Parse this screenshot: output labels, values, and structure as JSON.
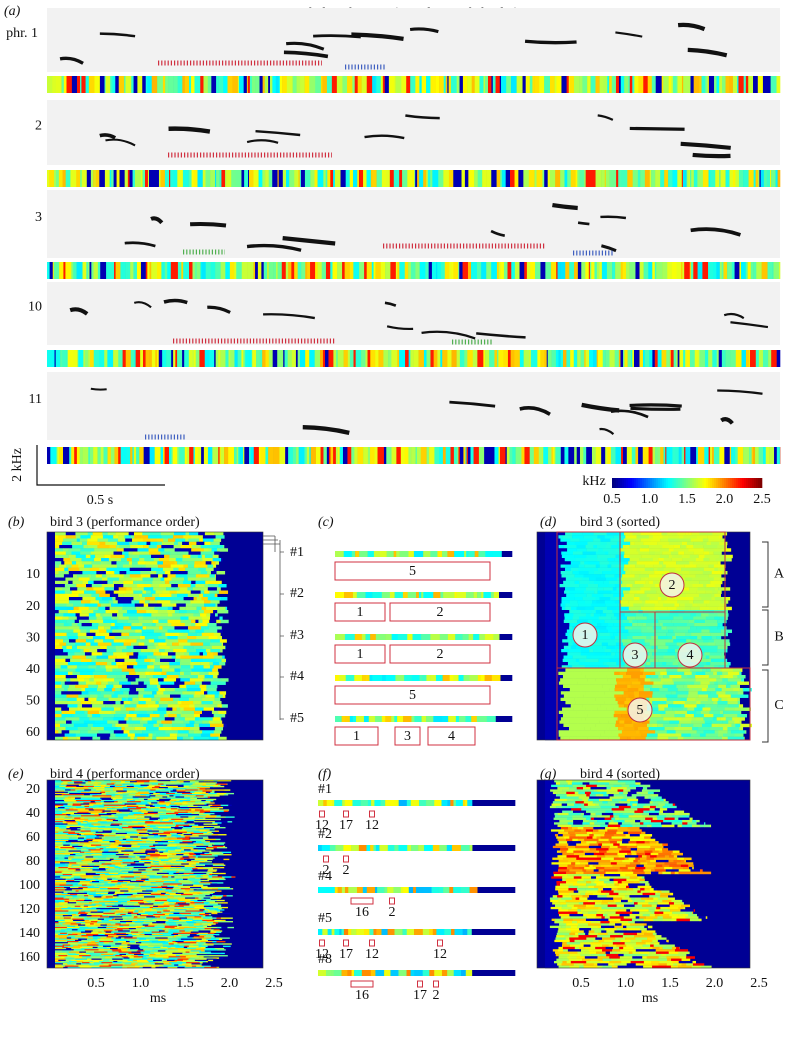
{
  "panel_a": {
    "label": "(a)",
    "title": "motif identification (sample motifs-bird 2)",
    "rows": [
      "phr. 1",
      "2",
      "3",
      "10",
      "11"
    ],
    "scale_y": "2 kHz",
    "scale_x": "0.5 s",
    "colorbar": {
      "unit": "kHz",
      "ticks": [
        "0.5",
        "1.0",
        "1.5",
        "2.0",
        "2.5"
      ]
    }
  },
  "panel_b": {
    "label": "(b)",
    "title": "bird 3 (performance order)",
    "yticks": [
      "10",
      "20",
      "30",
      "40",
      "50",
      "60"
    ],
    "motifs": [
      "#1",
      "#2",
      "#3",
      "#4",
      "#5"
    ]
  },
  "panel_c": {
    "label": "(c)",
    "rows": [
      [
        "5"
      ],
      [
        "1",
        "2"
      ],
      [
        "1",
        "2"
      ],
      [
        "5"
      ],
      [
        "1",
        "3",
        "4"
      ]
    ]
  },
  "panel_d": {
    "label": "(d)",
    "title": "bird 3 (sorted)",
    "clusters": [
      "1",
      "2",
      "3",
      "4",
      "5"
    ],
    "groups": [
      "A",
      "B",
      "C"
    ]
  },
  "panel_e": {
    "label": "(e)",
    "title": "bird 4 (performance order)",
    "yticks": [
      "20",
      "40",
      "60",
      "80",
      "100",
      "120",
      "140",
      "160"
    ],
    "xticks": [
      "0.5",
      "1.0",
      "1.5",
      "2.0",
      "2.5"
    ],
    "xlabel": "ms"
  },
  "panel_f": {
    "label": "(f)",
    "rows": [
      {
        "motif": "#1",
        "labels": [
          "12",
          "17",
          "12"
        ]
      },
      {
        "motif": "#2",
        "labels": [
          "2",
          "2"
        ]
      },
      {
        "motif": "#4",
        "labels": [
          "16",
          "2"
        ]
      },
      {
        "motif": "#5",
        "labels": [
          "12",
          "17",
          "12",
          "12"
        ]
      },
      {
        "motif": "#8",
        "labels": [
          "16",
          "17",
          "2"
        ]
      }
    ]
  },
  "panel_g": {
    "label": "(g)",
    "title": "bird 4 (sorted)",
    "xticks": [
      "0.5",
      "1.0",
      "1.5",
      "2.0",
      "2.5"
    ],
    "xlabel": "ms"
  }
}
